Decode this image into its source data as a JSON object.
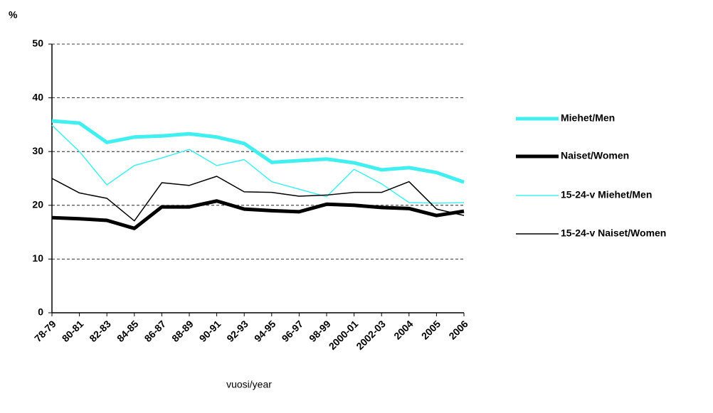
{
  "chart_data": {
    "type": "line",
    "y_label": "%",
    "x_label": "vuosi/year",
    "categories": [
      "78-79",
      "80-81",
      "82-83",
      "84-85",
      "86-87",
      "88-89",
      "90-91",
      "92-93",
      "94-95",
      "96-97",
      "98-99",
      "2000-01",
      "2002-03",
      "2004",
      "2005",
      "2006"
    ],
    "series": [
      {
        "name": "Miehet/Men",
        "color": "#40f0f0",
        "linewidth": 5,
        "values": [
          35.7,
          35.3,
          31.7,
          32.7,
          32.9,
          33.3,
          32.7,
          31.5,
          28.0,
          28.3,
          28.6,
          27.9,
          26.6,
          27.0,
          26.1,
          24.3
        ]
      },
      {
        "name": "Naiset/Women",
        "color": "#000000",
        "linewidth": 5,
        "values": [
          17.7,
          17.5,
          17.2,
          15.7,
          19.7,
          19.7,
          20.8,
          19.3,
          19.0,
          18.8,
          20.2,
          20.0,
          19.6,
          19.4,
          18.1,
          18.9
        ]
      },
      {
        "name": "15-24-v Miehet/Men",
        "color": "#40f0f0",
        "linewidth": 1.5,
        "values": [
          34.9,
          30.0,
          23.8,
          27.4,
          28.8,
          30.4,
          27.4,
          28.5,
          24.4,
          23.0,
          21.6,
          26.7,
          24.0,
          20.5,
          20.4,
          20.5
        ]
      },
      {
        "name": "15-24-v Naiset/Women",
        "color": "#000000",
        "linewidth": 1.5,
        "values": [
          25.0,
          22.3,
          21.3,
          17.1,
          24.2,
          23.7,
          25.4,
          22.5,
          22.4,
          21.7,
          21.9,
          22.4,
          22.4,
          24.4,
          19.3,
          18.1
        ]
      }
    ],
    "ylim": [
      0,
      50
    ],
    "yticks": [
      0,
      10,
      20,
      30,
      40,
      50
    ],
    "grid": true,
    "legend": "right"
  }
}
